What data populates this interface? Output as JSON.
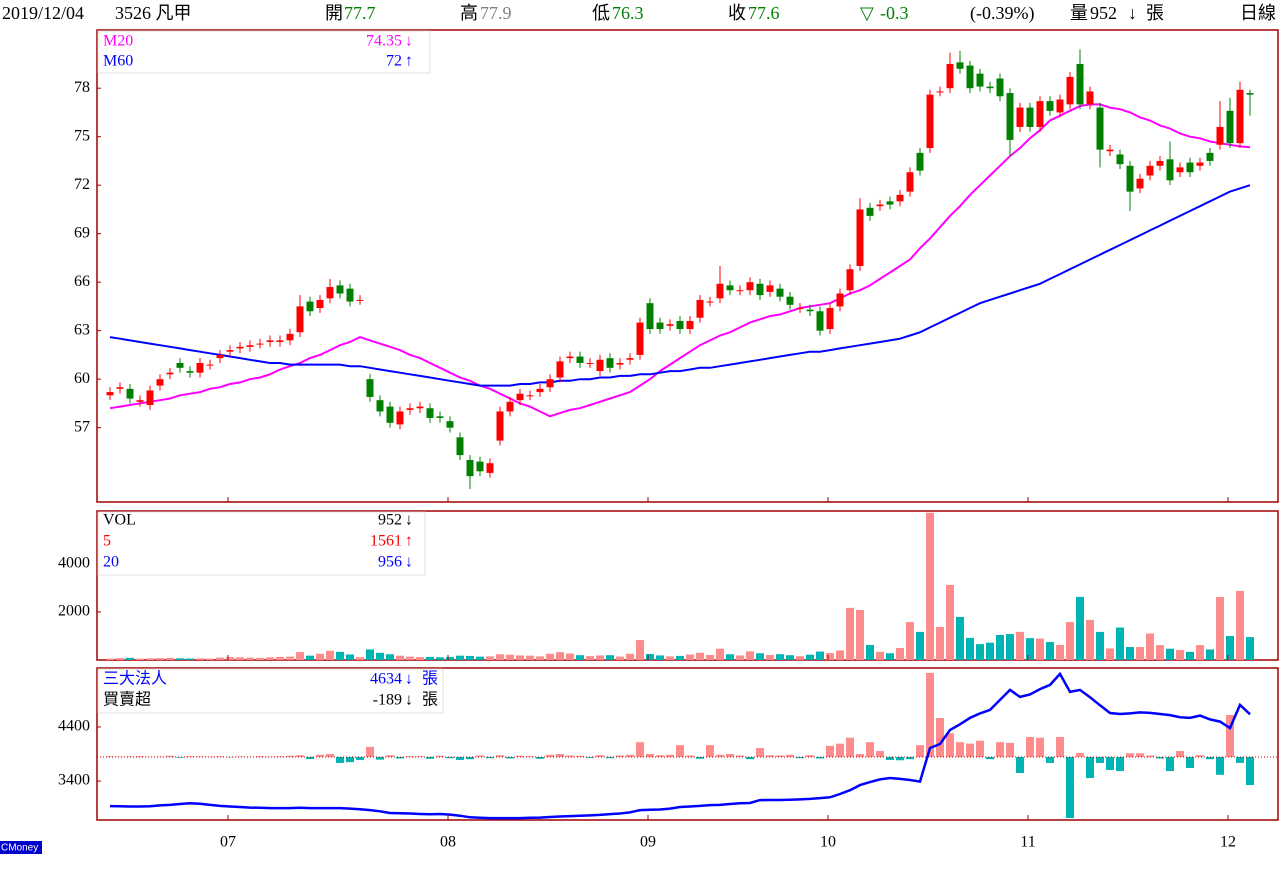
{
  "header": {
    "date": "2019/12/04",
    "stock": "3526 凡甲",
    "open_label": "開",
    "high_label": "高",
    "low_label": "低",
    "close_label": "收",
    "change_symbol": "▽",
    "change": -0.3,
    "change_pct": "(-0.39%)",
    "volume_label": "量",
    "volume_arrow": "↓",
    "unit": "張",
    "period": "日線"
  },
  "footer": {
    "brand": "CMoney"
  },
  "chart_data": [
    {
      "type": "candlestick",
      "up_color": "#ff0000",
      "down_color": "#008000",
      "open": [
        59.0,
        59.4,
        59.4,
        58.6,
        58.4,
        59.6,
        60.3,
        61.0,
        60.5,
        60.4,
        60.9,
        61.3,
        61.7,
        61.9,
        62.0,
        62.2,
        62.3,
        62.3,
        62.4,
        62.9,
        64.8,
        64.4,
        65.0,
        65.8,
        65.6,
        64.9,
        60.0,
        58.7,
        58.3,
        57.2,
        58.1,
        58.2,
        58.2,
        57.7,
        57.4,
        56.4,
        55.0,
        54.9,
        54.2,
        56.2,
        58.0,
        58.7,
        59.0,
        59.2,
        59.5,
        60.1,
        61.3,
        61.4,
        61.0,
        60.5,
        61.3,
        60.9,
        61.2,
        61.5,
        64.7,
        63.5,
        63.3,
        63.6,
        63.1,
        63.8,
        64.8,
        65.0,
        65.8,
        65.5,
        65.5,
        65.9,
        65.4,
        65.6,
        65.1,
        64.4,
        64.3,
        64.2,
        63.1,
        64.5,
        65.5,
        67.0,
        70.6,
        70.7,
        71.0,
        71.0,
        71.6,
        74.0,
        74.3,
        77.8,
        78.0,
        79.6,
        79.4,
        78.9,
        78.1,
        78.6,
        77.7,
        75.6,
        76.8,
        75.6,
        77.2,
        76.5,
        77.0,
        79.5,
        77.0,
        76.8,
        74.1,
        73.9,
        73.2,
        71.8,
        72.6,
        73.2,
        73.6,
        72.8,
        73.4,
        73.2,
        74.0,
        74.5,
        76.6,
        74.6,
        77.7
      ],
      "high": [
        59.5,
        59.8,
        59.7,
        59.0,
        59.6,
        60.3,
        60.7,
        61.3,
        60.8,
        61.3,
        61.2,
        61.8,
        62.1,
        62.3,
        62.4,
        62.5,
        62.7,
        62.7,
        63.1,
        65.2,
        65.1,
        65.2,
        66.2,
        66.1,
        65.9,
        65.2,
        60.3,
        59.0,
        58.6,
        58.3,
        58.5,
        58.6,
        58.5,
        58.0,
        57.7,
        56.7,
        55.3,
        55.2,
        55.1,
        58.3,
        58.9,
        59.4,
        59.3,
        59.7,
        60.3,
        61.4,
        61.7,
        61.7,
        61.3,
        61.5,
        61.6,
        61.3,
        61.6,
        63.8,
        65.0,
        63.8,
        63.7,
        63.9,
        63.9,
        65.2,
        65.1,
        67.0,
        66.1,
        65.8,
        66.3,
        66.2,
        66.1,
        65.9,
        65.4,
        64.7,
        64.6,
        64.5,
        64.7,
        65.6,
        67.1,
        71.2,
        70.9,
        71.1,
        71.3,
        71.7,
        73.1,
        74.3,
        77.9,
        78.1,
        80.2,
        80.3,
        79.7,
        79.2,
        78.4,
        78.9,
        78.0,
        77.1,
        77.1,
        77.5,
        77.5,
        77.6,
        79.0,
        80.4,
        78.1,
        77.1,
        74.5,
        74.2,
        73.5,
        72.7,
        73.5,
        73.8,
        74.7,
        73.4,
        73.7,
        73.7,
        74.3,
        77.2,
        77.4,
        78.4,
        77.9
      ],
      "low": [
        58.7,
        59.1,
        58.5,
        58.3,
        58.1,
        59.3,
        60.0,
        60.4,
        60.1,
        60.1,
        60.6,
        61.0,
        61.4,
        61.6,
        61.7,
        61.9,
        62.0,
        62.0,
        62.1,
        62.6,
        63.9,
        64.1,
        64.7,
        65.0,
        64.5,
        64.6,
        58.6,
        57.7,
        57.0,
        56.9,
        57.8,
        57.9,
        57.3,
        57.3,
        56.7,
        55.0,
        53.2,
        54.0,
        53.9,
        55.9,
        57.7,
        58.4,
        58.7,
        58.9,
        59.2,
        59.8,
        61.0,
        60.7,
        60.7,
        60.2,
        60.4,
        60.6,
        60.9,
        61.2,
        62.8,
        62.8,
        63.0,
        62.8,
        62.8,
        63.5,
        64.5,
        64.7,
        65.2,
        65.2,
        65.2,
        64.9,
        65.1,
        64.8,
        64.3,
        64.1,
        63.9,
        62.7,
        62.8,
        64.2,
        65.2,
        66.7,
        69.8,
        70.4,
        70.5,
        70.7,
        71.3,
        72.6,
        74.0,
        77.5,
        77.7,
        78.9,
        77.7,
        77.8,
        77.7,
        77.2,
        73.8,
        75.3,
        75.3,
        75.3,
        76.3,
        76.2,
        76.7,
        76.7,
        76.7,
        73.1,
        73.8,
        73.0,
        70.4,
        71.5,
        72.3,
        72.9,
        72.0,
        72.5,
        72.5,
        72.9,
        73.2,
        74.2,
        74.3,
        74.3,
        76.3
      ],
      "close": [
        59.2,
        59.5,
        58.8,
        58.7,
        59.3,
        60.0,
        60.4,
        60.7,
        60.4,
        61.0,
        60.9,
        61.5,
        61.8,
        62.0,
        62.1,
        62.2,
        62.4,
        62.4,
        62.8,
        64.5,
        64.2,
        64.9,
        65.7,
        65.3,
        64.8,
        64.9,
        58.9,
        58.0,
        57.3,
        58.0,
        58.2,
        58.3,
        57.6,
        57.6,
        57.0,
        55.3,
        54.0,
        54.3,
        54.8,
        58.0,
        58.6,
        59.1,
        59.0,
        59.4,
        60.0,
        61.1,
        61.4,
        61.0,
        61.0,
        61.2,
        60.7,
        61.0,
        61.3,
        63.5,
        63.1,
        63.1,
        63.4,
        63.1,
        63.6,
        64.9,
        64.8,
        65.9,
        65.5,
        65.5,
        66.0,
        65.2,
        65.8,
        65.1,
        64.6,
        64.4,
        64.2,
        63.0,
        64.4,
        65.3,
        66.8,
        70.5,
        70.1,
        70.8,
        70.8,
        71.4,
        72.8,
        72.9,
        77.6,
        77.8,
        79.5,
        79.2,
        78.0,
        78.1,
        78.0,
        77.5,
        74.8,
        76.8,
        75.6,
        77.2,
        76.6,
        77.3,
        78.7,
        77.0,
        77.8,
        74.2,
        74.2,
        73.3,
        71.6,
        72.4,
        73.2,
        73.5,
        72.3,
        73.1,
        72.8,
        73.4,
        73.5,
        75.6,
        74.6,
        77.9,
        77.6
      ],
      "series": [
        {
          "name": "M20",
          "color": "#ff00ff",
          "arrow": "↓",
          "values": [
            58.2,
            58.3,
            58.4,
            58.5,
            58.6,
            58.7,
            58.8,
            59.0,
            59.1,
            59.2,
            59.4,
            59.5,
            59.7,
            59.8,
            60.0,
            60.1,
            60.3,
            60.6,
            60.8,
            61.0,
            61.3,
            61.5,
            61.8,
            62.1,
            62.3,
            62.6,
            62.4,
            62.2,
            62.0,
            61.8,
            61.5,
            61.3,
            61.0,
            60.7,
            60.4,
            60.1,
            59.9,
            59.6,
            59.4,
            59.1,
            58.8,
            58.5,
            58.3,
            58.0,
            57.7,
            57.9,
            58.1,
            58.2,
            58.4,
            58.6,
            58.8,
            59.0,
            59.2,
            59.6,
            60.0,
            60.5,
            60.9,
            61.3,
            61.7,
            62.1,
            62.4,
            62.7,
            62.9,
            63.2,
            63.5,
            63.7,
            63.9,
            64.0,
            64.2,
            64.4,
            64.5,
            64.6,
            64.7,
            65.0,
            65.3,
            65.5,
            65.8,
            66.2,
            66.6,
            67.0,
            67.4,
            68.1,
            68.7,
            69.4,
            70.1,
            70.7,
            71.4,
            72.0,
            72.6,
            73.2,
            73.8,
            74.3,
            74.9,
            75.4,
            76.0,
            76.3,
            76.6,
            76.9,
            77.0,
            77.0,
            76.8,
            76.7,
            76.5,
            76.2,
            76.0,
            75.7,
            75.5,
            75.2,
            75.0,
            74.9,
            74.7,
            74.6,
            74.5,
            74.4,
            74.35
          ]
        },
        {
          "name": "M60",
          "color": "#0000ff",
          "arrow": "↑",
          "values": [
            62.6,
            62.5,
            62.4,
            62.3,
            62.2,
            62.1,
            62.0,
            61.9,
            61.8,
            61.7,
            61.6,
            61.5,
            61.4,
            61.3,
            61.2,
            61.1,
            61.0,
            61.0,
            60.9,
            60.9,
            60.9,
            60.9,
            60.9,
            60.9,
            60.8,
            60.8,
            60.7,
            60.6,
            60.5,
            60.4,
            60.3,
            60.2,
            60.1,
            60.0,
            59.9,
            59.8,
            59.7,
            59.6,
            59.6,
            59.6,
            59.6,
            59.7,
            59.7,
            59.8,
            59.8,
            59.9,
            59.9,
            60.0,
            60.0,
            60.1,
            60.1,
            60.2,
            60.2,
            60.3,
            60.3,
            60.4,
            60.5,
            60.5,
            60.6,
            60.7,
            60.7,
            60.8,
            60.9,
            61.0,
            61.1,
            61.2,
            61.3,
            61.4,
            61.5,
            61.6,
            61.7,
            61.7,
            61.8,
            61.9,
            62.0,
            62.1,
            62.2,
            62.3,
            62.4,
            62.5,
            62.7,
            62.9,
            63.2,
            63.5,
            63.8,
            64.1,
            64.4,
            64.7,
            64.9,
            65.1,
            65.3,
            65.5,
            65.7,
            65.9,
            66.2,
            66.5,
            66.8,
            67.1,
            67.4,
            67.7,
            68.0,
            68.3,
            68.6,
            68.9,
            69.2,
            69.5,
            69.8,
            70.1,
            70.4,
            70.7,
            71.0,
            71.3,
            71.6,
            71.8,
            72
          ]
        }
      ],
      "ylim": [
        52.4,
        81.6
      ],
      "yticks": [
        57,
        60,
        63,
        66,
        69,
        72,
        75,
        78
      ],
      "xticks": [
        {
          "value": 12,
          "label": "07"
        },
        {
          "value": 34,
          "label": "08"
        },
        {
          "value": 54,
          "label": "09"
        },
        {
          "value": 72,
          "label": "10"
        },
        {
          "value": 92,
          "label": "11"
        },
        {
          "value": 112,
          "label": "12"
        }
      ]
    },
    {
      "type": "bar",
      "up_color": "#ff8c8c",
      "down_color": "#00b4b4",
      "series": [
        {
          "name": "VOL",
          "color": "#000000",
          "arrow": "↓",
          "values": [
            60,
            80,
            90,
            60,
            70,
            80,
            90,
            70,
            60,
            70,
            60,
            100,
            120,
            110,
            100,
            90,
            110,
            130,
            140,
            330,
            180,
            260,
            380,
            340,
            230,
            120,
            440,
            300,
            240,
            180,
            140,
            120,
            130,
            110,
            120,
            180,
            170,
            140,
            150,
            240,
            220,
            190,
            180,
            150,
            260,
            330,
            270,
            200,
            160,
            190,
            200,
            140,
            260,
            830,
            250,
            190,
            150,
            170,
            230,
            300,
            210,
            470,
            240,
            190,
            360,
            280,
            210,
            240,
            200,
            160,
            220,
            350,
            290,
            400,
            2170,
            2080,
            625,
            340,
            280,
            500,
            1580,
            1170,
            6125,
            1375,
            3125,
            1790,
            920,
            660,
            720,
            1040,
            1080,
            1170,
            910,
            890,
            750,
            630,
            1580,
            2625,
            1670,
            1170,
            480,
            1350,
            540,
            540,
            1100,
            620,
            470,
            420,
            340,
            620,
            440,
            2625,
            1000,
            2875,
            952
          ]
        }
      ],
      "legend": [
        {
          "name": "5",
          "value": 1561,
          "arrow": "↑",
          "color": "#ff0000"
        },
        {
          "name": "20",
          "value": 956,
          "arrow": "↓",
          "color": "#0000ff"
        }
      ],
      "ylim": [
        0,
        6200
      ],
      "yticks": [
        2000,
        4000
      ]
    },
    {
      "type": "bar_line",
      "up_color": "#ff8c8c",
      "down_color": "#00b4b4",
      "unit": "張",
      "series": [
        {
          "name": "三大法人",
          "color": "#0000ff",
          "arrow": "↓",
          "values": [
            2937,
            2935,
            2930,
            2930,
            2935,
            2950,
            2960,
            2975,
            2990,
            2980,
            2960,
            2940,
            2930,
            2920,
            2910,
            2905,
            2900,
            2900,
            2900,
            2905,
            2900,
            2900,
            2900,
            2900,
            2890,
            2880,
            2863,
            2840,
            2810,
            2805,
            2800,
            2790,
            2785,
            2790,
            2780,
            2760,
            2730,
            2720,
            2715,
            2715,
            2715,
            2715,
            2720,
            2725,
            2735,
            2745,
            2752,
            2758,
            2765,
            2775,
            2789,
            2800,
            2820,
            2863,
            2870,
            2875,
            2890,
            2920,
            2930,
            2940,
            2956,
            2960,
            2975,
            2990,
            2995,
            3048,
            3050,
            3050,
            3055,
            3060,
            3070,
            3085,
            3100,
            3160,
            3230,
            3326,
            3380,
            3430,
            3456,
            3440,
            3419,
            3390,
            4011,
            4085,
            4344,
            4450,
            4567,
            4650,
            4715,
            4900,
            5085,
            4956,
            5000,
            5100,
            5178,
            5381,
            5048,
            5085,
            4950,
            4800,
            4659,
            4640,
            4650,
            4670,
            4660,
            4640,
            4620,
            4580,
            4567,
            4610,
            4540,
            4500,
            4381,
            4807,
            4634
          ]
        },
        {
          "name": "買賣超",
          "color": "#000000",
          "arrow": "↓",
          "axis": "y2",
          "values": [
            5,
            3,
            4,
            6,
            2,
            3,
            8,
            -5,
            6,
            4,
            3,
            5,
            -3,
            4,
            2,
            6,
            3,
            5,
            8,
            12,
            -14,
            15,
            20,
            -40,
            -35,
            -20,
            68,
            -18,
            12,
            -10,
            6,
            5,
            -12,
            8,
            -8,
            -20,
            -15,
            10,
            -8,
            12,
            -10,
            8,
            6,
            -12,
            15,
            20,
            10,
            8,
            -6,
            12,
            -8,
            10,
            15,
            100,
            20,
            12,
            15,
            80,
            10,
            -12,
            80,
            15,
            20,
            10,
            -15,
            60,
            12,
            10,
            15,
            -8,
            12,
            -10,
            75,
            90,
            130,
            20,
            100,
            40,
            -20,
            -22,
            -15,
            80,
            567,
            263,
            160,
            100,
            90,
            110,
            -15,
            100,
            95,
            -108,
            135,
            130,
            -40,
            135,
            -412,
            27,
            -142,
            -40,
            -88,
            -95,
            25,
            25,
            10,
            -10,
            -95,
            40,
            -74,
            12,
            -15,
            -120,
            283,
            -40,
            -189
          ]
        }
      ],
      "ylim": [
        2680,
        5490
      ],
      "yticks": [
        3400,
        4400
      ],
      "y2lim": [
        -425,
        600
      ]
    }
  ]
}
